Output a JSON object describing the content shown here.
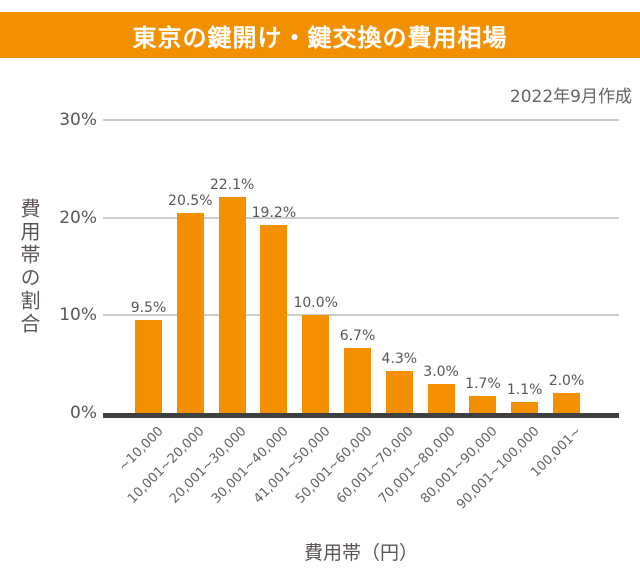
{
  "banner": {
    "title": "東京の鍵開け・鍵交換の費用相場"
  },
  "note": "2022年9月作成",
  "chart_data": {
    "type": "bar",
    "title": "東京の鍵開け・鍵交換の費用相場",
    "subtitle": "2022年9月作成",
    "categories": [
      "~10,000",
      "10,001~20,000",
      "20,001~30,000",
      "30,001~40,000",
      "41,001~50,000",
      "50,001~60,000",
      "60,001~70,000",
      "70,001~80,000",
      "80,001~90,000",
      "90,001~100,000",
      "100,001~"
    ],
    "values": [
      9.5,
      20.5,
      22.1,
      19.2,
      10.0,
      6.7,
      4.3,
      3.0,
      1.7,
      1.1,
      2.0
    ],
    "value_labels": [
      "9.5%",
      "20.5%",
      "22.1%",
      "19.2%",
      "10.0%",
      "6.7%",
      "4.3%",
      "3.0%",
      "1.7%",
      "1.1%",
      "2.0%"
    ],
    "xlabel": "費用帯（円）",
    "ylabel": "費用帯の割合",
    "ylim": [
      0,
      30
    ],
    "y_ticks": [
      0,
      10,
      20,
      30
    ],
    "y_tick_labels": [
      "0%",
      "10%",
      "20%",
      "30%"
    ],
    "grid": true,
    "legend": false,
    "theme": {
      "accent": "#f39000",
      "text": "#5d5555",
      "muted_text": "#6b6262",
      "grid": "#cdcdcd",
      "axis": "#3f3f3f",
      "banner_text": "#ffffff"
    }
  }
}
